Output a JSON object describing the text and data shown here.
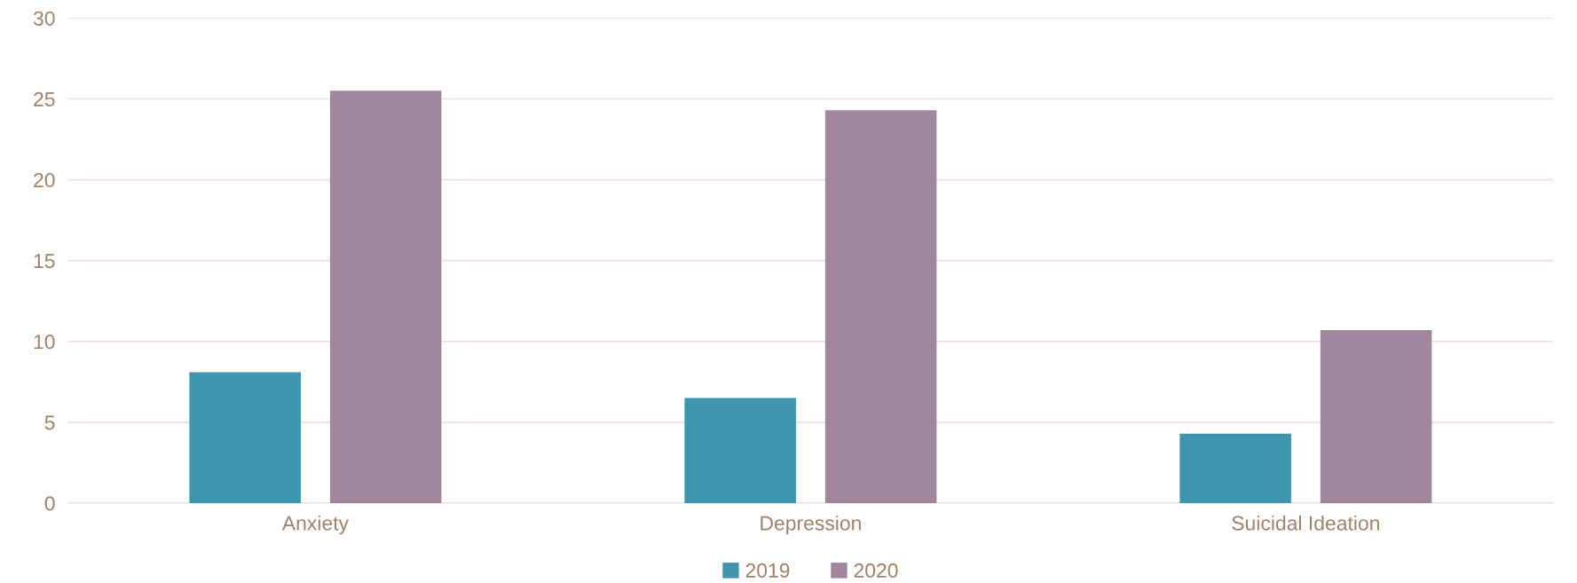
{
  "chart_data": {
    "type": "bar",
    "categories": [
      "Anxiety",
      "Depression",
      "Suicidal Ideation"
    ],
    "series": [
      {
        "name": "2019",
        "color": "#3f95ae",
        "values": [
          8.1,
          6.5,
          4.3
        ]
      },
      {
        "name": "2020",
        "color": "#a0879e",
        "values": [
          25.5,
          24.3,
          10.7
        ]
      }
    ],
    "ylim": [
      0,
      30
    ],
    "yticks": [
      0,
      5,
      10,
      15,
      20,
      25,
      30
    ],
    "grid": "y",
    "legend": "bottom"
  }
}
